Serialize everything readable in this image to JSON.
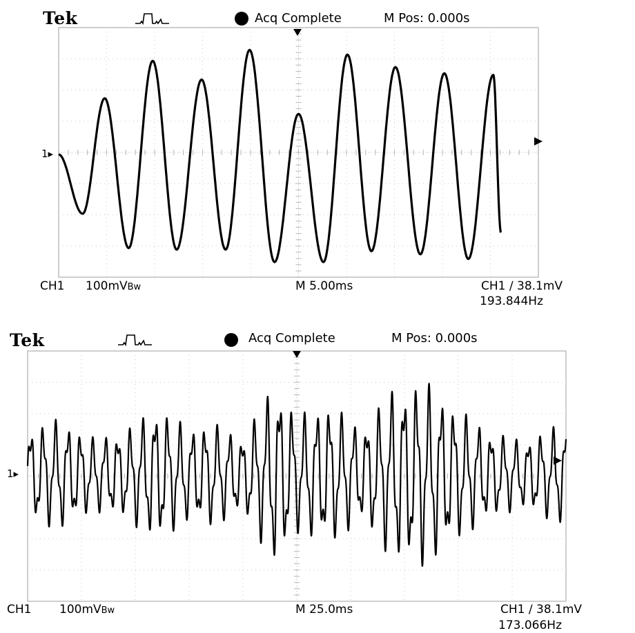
{
  "chart_data": [
    {
      "type": "line",
      "panel": "top",
      "brand": "Tek",
      "acq_status": "Acq Complete",
      "mpos": "M Pos: 0.000s",
      "ch_label": "CH1",
      "volts_div": "100mV",
      "bw_suffix": "Bw",
      "timebase": "M 5.00ms",
      "trigger_level": "CH1 ∕ 38.1mV",
      "frequency": "193.844Hz",
      "level_marker": "1",
      "grid": true,
      "x_divisions": 10,
      "y_divisions": 8,
      "time_per_div_ms": 5.0,
      "volts_per_div_mV": 100,
      "x_ms": [
        0,
        2.5,
        4.8,
        7.3,
        9.8,
        12.3,
        14.9,
        17.4,
        19.9,
        22.5,
        25.0,
        27.6,
        30.1,
        32.6,
        35.1,
        37.7,
        40.2,
        42.7,
        45.3,
        46.1
      ],
      "y_mV": [
        0,
        -190,
        180,
        -300,
        300,
        -305,
        240,
        -305,
        335,
        -345,
        130,
        -345,
        320,
        -310,
        280,
        -320,
        260,
        -335,
        255,
        -250
      ]
    },
    {
      "type": "line",
      "panel": "bottom",
      "brand": "Tek",
      "acq_status": "Acq Complete",
      "mpos": "M Pos: 0.000s",
      "ch_label": "CH1",
      "volts_div": "100mV",
      "bw_suffix": "Bw",
      "timebase": "M 25.0ms",
      "trigger_level": "CH1 ∕ 38.1mV",
      "frequency": "173.066Hz",
      "level_marker": "1",
      "grid": true,
      "x_divisions": 10,
      "y_divisions": 8,
      "time_per_div_ms": 25.0,
      "volts_per_div_mV": 100,
      "envelope_x_ms": [
        0,
        15,
        30,
        45,
        60,
        75,
        85,
        100,
        115,
        125,
        140,
        155,
        170,
        185,
        200,
        215,
        230,
        250
      ],
      "envelope_mV": [
        150,
        180,
        120,
        140,
        220,
        150,
        170,
        120,
        300,
        190,
        230,
        150,
        280,
        300,
        210,
        140,
        110,
        170
      ]
    }
  ]
}
